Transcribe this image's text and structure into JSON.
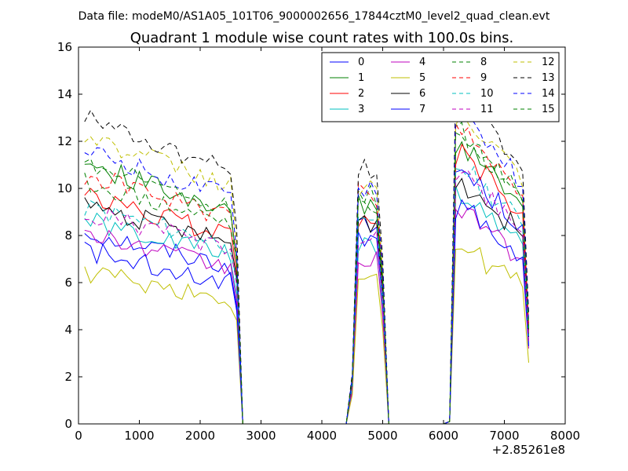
{
  "suptitle": "Data file: modeM0/AS1A05_101T06_9000002656_17844cztM0_level2_quad_clean.evt",
  "chart_data": {
    "type": "line",
    "title": "Quadrant 1 module wise count rates with 100.0s bins.",
    "xlabel": "",
    "ylabel": "",
    "x_offset_label": "+2.85261e8",
    "xlim": [
      0,
      8000
    ],
    "ylim": [
      0,
      16
    ],
    "xticks": [
      "0",
      "1000",
      "2000",
      "3000",
      "4000",
      "5000",
      "6000",
      "7000",
      "8000"
    ],
    "yticks": [
      "0",
      "2",
      "4",
      "6",
      "8",
      "10",
      "12",
      "14",
      "16"
    ],
    "grid": false,
    "legend_position": "top-right",
    "legend_columns": 4,
    "segments": [
      {
        "start": 100,
        "step": 100,
        "count": 26
      },
      {
        "start": 2700,
        "step": 100,
        "count": 18
      },
      {
        "start": 4500,
        "step": 100,
        "count": 6
      },
      {
        "start": 5100,
        "step": 100,
        "count": 10
      },
      {
        "start": 6200,
        "step": 100,
        "count": 13
      }
    ],
    "series": [
      {
        "name": "0",
        "color": "#0000ff",
        "dash": "solid",
        "block1_base": 7.1,
        "block1_last": 4.8,
        "peak2": 8.3,
        "peak3": 10.8,
        "block3_last": 3.3
      },
      {
        "name": "1",
        "color": "#008000",
        "dash": "solid",
        "block1_base": 9.6,
        "block1_last": 6.8,
        "peak2": 9.2,
        "peak3": 11.8,
        "block3_last": 4.0
      },
      {
        "name": "2",
        "color": "#ff0000",
        "dash": "solid",
        "block1_base": 8.4,
        "block1_last": 6.4,
        "peak2": 8.8,
        "peak3": 11.5,
        "block3_last": 3.8
      },
      {
        "name": "3",
        "color": "#00bfbf",
        "dash": "solid",
        "block1_base": 7.5,
        "block1_last": 5.5,
        "peak2": 7.6,
        "peak3": 9.8,
        "block3_last": 3.4
      },
      {
        "name": "4",
        "color": "#bf00bf",
        "dash": "solid",
        "block1_base": 7.0,
        "block1_last": 5.2,
        "peak2": 7.0,
        "peak3": 9.0,
        "block3_last": 3.2
      },
      {
        "name": "5",
        "color": "#bfbf00",
        "dash": "solid",
        "block1_base": 5.6,
        "block1_last": 4.4,
        "peak2": 6.2,
        "peak3": 7.5,
        "block3_last": 2.6
      },
      {
        "name": "6",
        "color": "#000000",
        "dash": "solid",
        "block1_base": 8.1,
        "block1_last": 6.2,
        "peak2": 8.6,
        "peak3": 10.3,
        "block3_last": 3.7
      },
      {
        "name": "7",
        "color": "#0000ff",
        "dash": "solid",
        "block1_base": 6.4,
        "block1_last": 5.0,
        "peak2": 8.0,
        "peak3": 9.2,
        "block3_last": 3.3
      },
      {
        "name": "8",
        "color": "#008000",
        "dash": "dashed",
        "block1_base": 8.9,
        "block1_last": 7.0,
        "peak2": 9.6,
        "peak3": 12.3,
        "block3_last": 4.1
      },
      {
        "name": "9",
        "color": "#ff0000",
        "dash": "dashed",
        "block1_base": 9.2,
        "block1_last": 7.1,
        "peak2": 9.8,
        "peak3": 12.6,
        "block3_last": 4.2
      },
      {
        "name": "10",
        "color": "#00bfbf",
        "dash": "dashed",
        "block1_base": 8.0,
        "block1_last": 6.1,
        "peak2": 8.3,
        "peak3": 10.9,
        "block3_last": 3.6
      },
      {
        "name": "11",
        "color": "#bf00bf",
        "dash": "dashed",
        "block1_base": 7.8,
        "block1_last": 5.9,
        "peak2": 8.0,
        "peak3": 10.6,
        "block3_last": 3.5
      },
      {
        "name": "12",
        "color": "#bfbf00",
        "dash": "dashed",
        "block1_base": 10.6,
        "block1_last": 7.6,
        "peak2": 10.0,
        "peak3": 13.1,
        "block3_last": 4.4
      },
      {
        "name": "13",
        "color": "#000000",
        "dash": "dashed",
        "block1_base": 11.3,
        "block1_last": 8.3,
        "peak2": 10.8,
        "peak3": 14.0,
        "block3_last": 4.7
      },
      {
        "name": "14",
        "color": "#0000ff",
        "dash": "dashed",
        "block1_base": 10.1,
        "block1_last": 7.3,
        "peak2": 10.1,
        "peak3": 13.2,
        "block3_last": 4.3
      },
      {
        "name": "15",
        "color": "#008000",
        "dash": "dashed",
        "block1_base": 9.7,
        "block1_last": 6.9,
        "peak2": 9.5,
        "peak3": 12.4,
        "block3_last": 4.0
      }
    ]
  }
}
